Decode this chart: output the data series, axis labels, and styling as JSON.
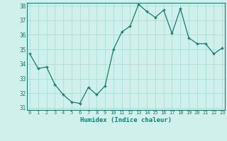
{
  "xlabel": "Humidex (Indice chaleur)",
  "x": [
    0,
    1,
    2,
    3,
    4,
    5,
    6,
    7,
    8,
    9,
    10,
    11,
    12,
    13,
    14,
    15,
    16,
    17,
    18,
    19,
    20,
    21,
    22,
    23
  ],
  "y": [
    34.7,
    33.7,
    33.8,
    32.6,
    31.9,
    31.4,
    31.3,
    32.4,
    31.9,
    32.5,
    35.0,
    36.2,
    36.6,
    38.1,
    37.6,
    37.2,
    37.7,
    36.1,
    37.8,
    35.8,
    35.4,
    35.4,
    34.7,
    35.1
  ],
  "ylim": [
    31,
    38
  ],
  "yticks": [
    31,
    32,
    33,
    34,
    35,
    36,
    37,
    38
  ],
  "xlim": [
    0,
    23
  ],
  "line_color": "#1a7a6e",
  "marker": "+",
  "bg_color": "#cff0eb",
  "grid_color": "#aaddd7",
  "tick_color": "#1a7a6e",
  "label_color": "#1a7a6e",
  "spine_color": "#1a7a6e"
}
